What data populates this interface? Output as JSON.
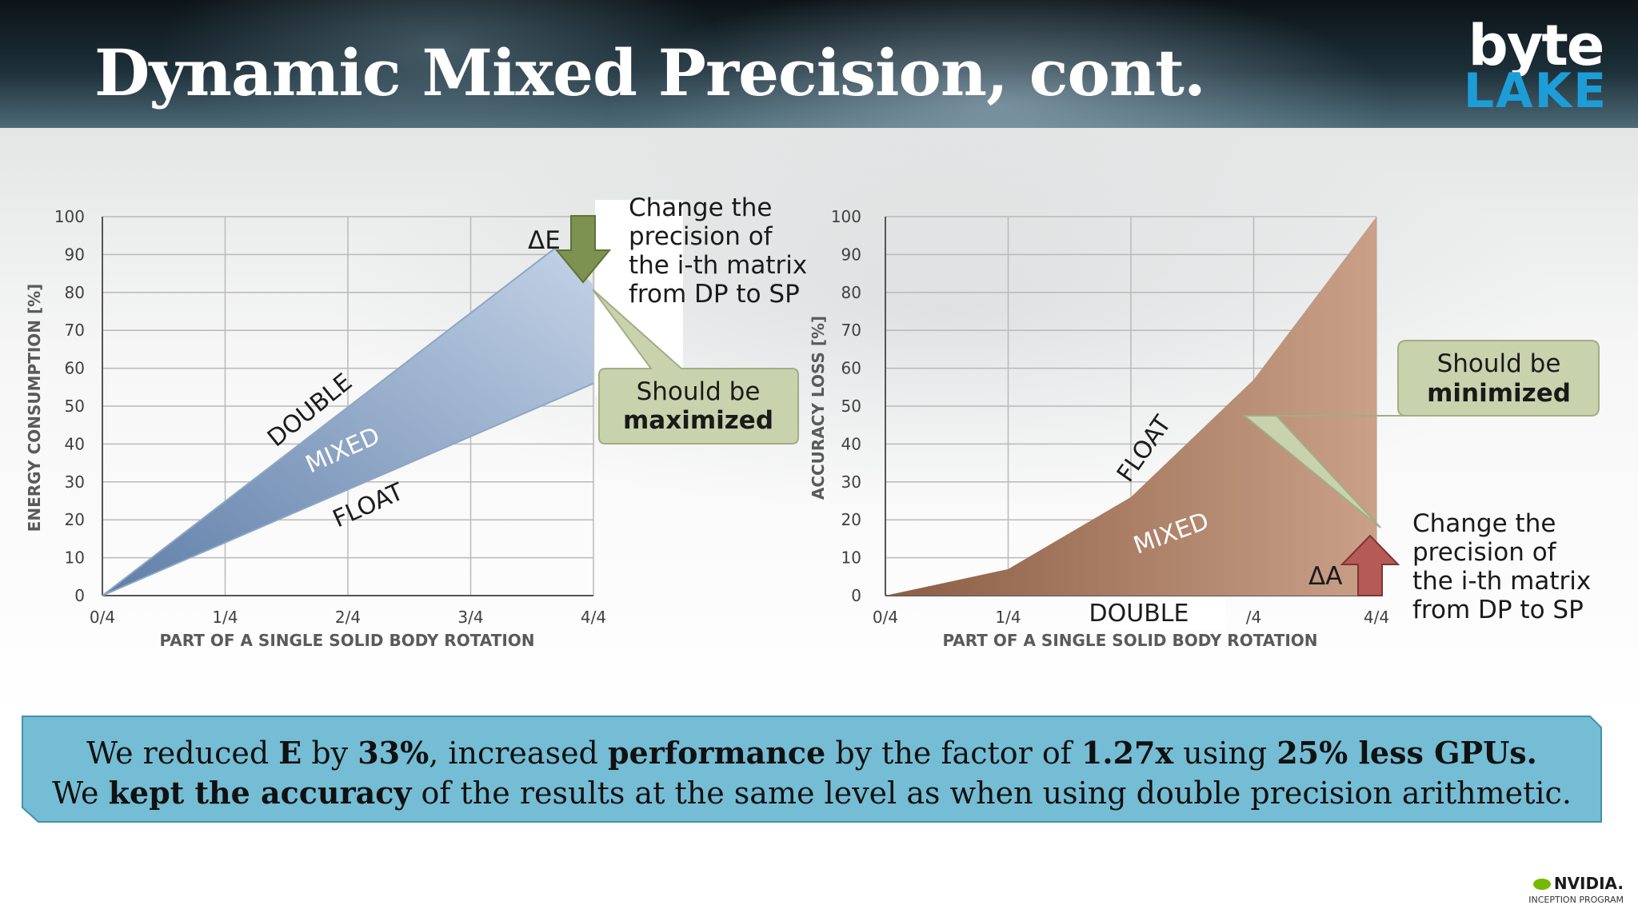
{
  "slide": {
    "title": "Dynamic Mixed Precision, cont.",
    "logo_top": "byte",
    "logo_bottom": "LAKE",
    "brand_colors": {
      "logo_accent": "#1d9dd8",
      "footer_box": "#74bdd4"
    }
  },
  "chart_data": [
    {
      "type": "area",
      "ylabel": "ENERGY CONSUMPTION [%]",
      "xlabel": "PART OF A SINGLE SOLID BODY ROTATION",
      "x_ticks": [
        "0/4",
        "1/4",
        "2/4",
        "3/4",
        "4/4"
      ],
      "y_ticks": [
        "0",
        "10",
        "20",
        "30",
        "40",
        "50",
        "60",
        "70",
        "80",
        "90",
        "100"
      ],
      "ylim": [
        0,
        100
      ],
      "series": [
        {
          "name": "DOUBLE",
          "x": [
            0,
            4
          ],
          "y": [
            0,
            100
          ]
        },
        {
          "name": "FLOAT",
          "x": [
            0,
            4
          ],
          "y": [
            0,
            56
          ]
        }
      ],
      "mixed": {
        "x": [
          0,
          3.7,
          4,
          4
        ],
        "y": [
          0,
          92,
          82,
          56
        ]
      },
      "band_labels": [
        "DOUBLE",
        "MIXED",
        "FLOAT"
      ],
      "fill_color": "#7c98c0",
      "delta_label": "ΔE",
      "note": [
        "Change the",
        "precision of",
        "the i-th matrix",
        "from DP to SP"
      ],
      "callout": {
        "line1": "Should be",
        "line2": "maximized"
      },
      "grid": true
    },
    {
      "type": "area",
      "ylabel": "ACCURACY LOSS [%]",
      "xlabel": "PART OF A SINGLE SOLID BODY ROTATION",
      "x_ticks": [
        "0/4",
        "1/4",
        "DOUBLE",
        "/4",
        "4/4"
      ],
      "y_ticks": [
        "0",
        "10",
        "20",
        "30",
        "40",
        "50",
        "60",
        "70",
        "80",
        "90",
        "100"
      ],
      "ylim": [
        0,
        100
      ],
      "series": [
        {
          "name": "FLOAT",
          "x": [
            0,
            1,
            2,
            3,
            4
          ],
          "y": [
            0,
            7,
            26,
            57,
            100
          ]
        },
        {
          "name": "DOUBLE",
          "x": [
            0,
            4
          ],
          "y": [
            0,
            0
          ]
        }
      ],
      "band_labels": [
        "FLOAT",
        "MIXED",
        "DOUBLE"
      ],
      "fill_color": "#a37a63",
      "delta_label": "ΔA",
      "note": [
        "Change the",
        "precision of",
        "the i-th matrix",
        "from DP to SP"
      ],
      "callout": {
        "line1": "Should be",
        "line2": "minimized"
      },
      "grid": true
    }
  ],
  "footer": {
    "line1": [
      {
        "text": "We reduced ",
        "bold": false
      },
      {
        "text": "E",
        "bold": true
      },
      {
        "text": " by ",
        "bold": false
      },
      {
        "text": "33%",
        "bold": true
      },
      {
        "text": ", increased ",
        "bold": false
      },
      {
        "text": "performance",
        "bold": true
      },
      {
        "text": " by the factor of ",
        "bold": false
      },
      {
        "text": "1.27x",
        "bold": true
      },
      {
        "text": " using ",
        "bold": false
      },
      {
        "text": "25% less GPUs.",
        "bold": true
      }
    ],
    "line2": [
      {
        "text": "We ",
        "bold": false
      },
      {
        "text": "kept the accuracy",
        "bold": true
      },
      {
        "text": " of the results at the same level as when using double precision arithmetic.",
        "bold": false
      }
    ]
  },
  "partner": {
    "name": "NVIDIA.",
    "program": "INCEPTION PROGRAM"
  }
}
